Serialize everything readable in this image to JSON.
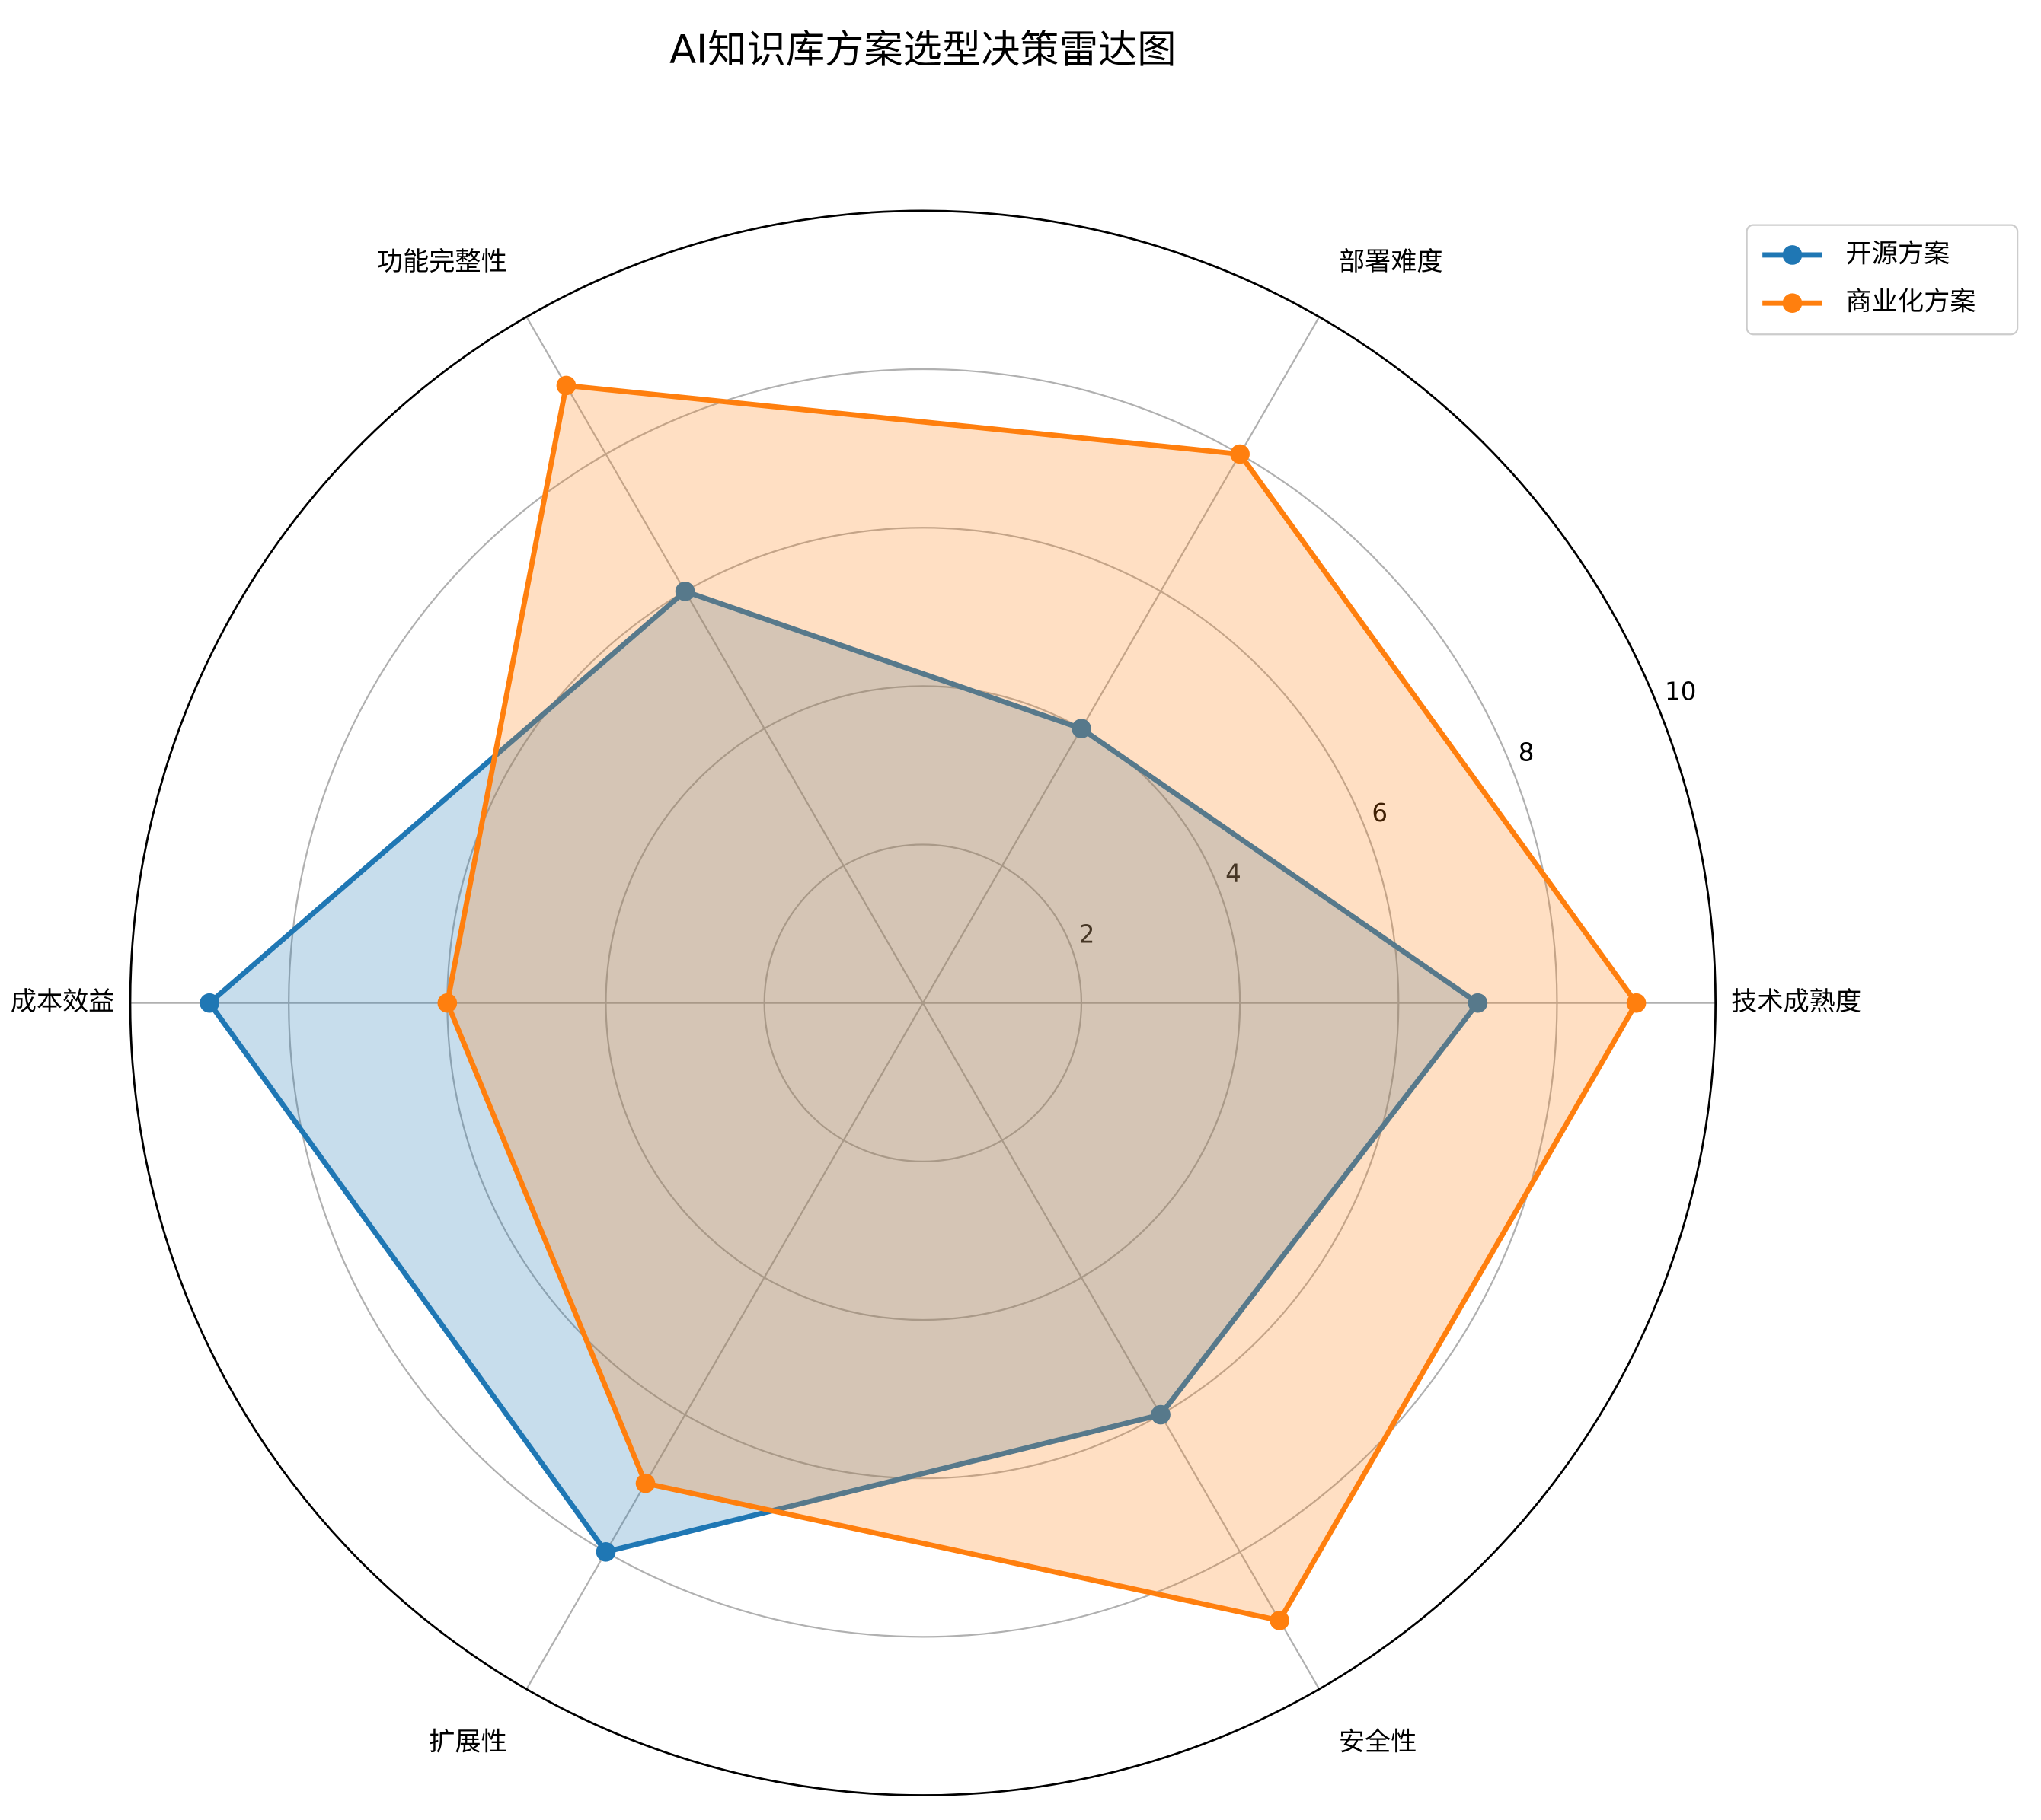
{
  "chart_data": {
    "type": "radar",
    "title": "AI知识库方案选型决策雷达图",
    "categories": [
      "技术成熟度",
      "部署难度",
      "功能完整性",
      "成本效益",
      "扩展性",
      "安全性"
    ],
    "series": [
      {
        "name": "开源方案",
        "color": "#1f77b4",
        "values": [
          7,
          4,
          6,
          9,
          8,
          6
        ]
      },
      {
        "name": "商业化方案",
        "color": "#ff7f0e",
        "values": [
          9,
          8,
          9,
          6,
          7,
          9
        ]
      }
    ],
    "ylim": [
      0,
      10
    ],
    "yticks": [
      2,
      4,
      6,
      8,
      10
    ],
    "grid": true,
    "legend": "upper right"
  }
}
